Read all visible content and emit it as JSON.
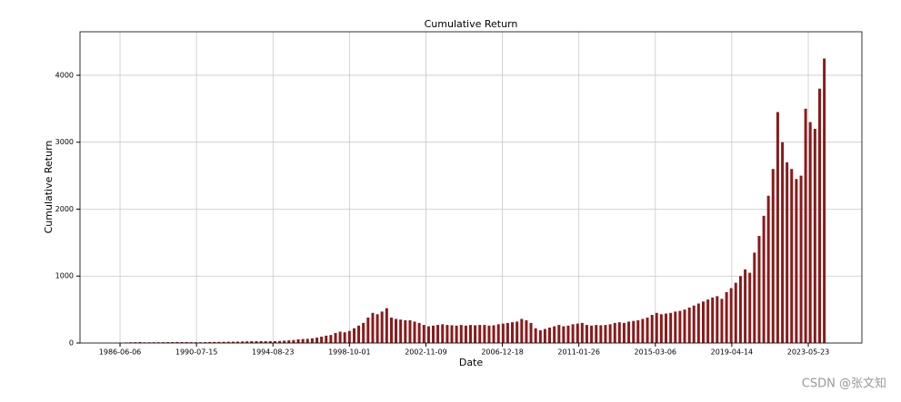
{
  "chart_data": {
    "type": "bar",
    "title": "Cumulative Return",
    "x_label": "Date",
    "y_label": "Cumulative Return",
    "watermark": "CSDN @张文知",
    "color": "#8b1a1a",
    "grid": true,
    "xlim": [
      "1984-04-12",
      "2026-04-09"
    ],
    "xticks": [
      "1986-06-06",
      "1990-07-15",
      "1994-08-23",
      "1998-10-01",
      "2002-11-09",
      "2006-12-18",
      "2011-01-26",
      "2015-03-06",
      "2019-04-14",
      "2023-05-23"
    ],
    "ylim": [
      0,
      4650
    ],
    "yticks": [
      0,
      1000,
      2000,
      3000,
      4000
    ],
    "x": [
      "1986-10-01",
      "1987-01-01",
      "1987-04-01",
      "1987-07-01",
      "1987-10-01",
      "1988-01-01",
      "1988-04-01",
      "1988-07-01",
      "1988-10-01",
      "1989-01-01",
      "1989-04-01",
      "1989-07-01",
      "1989-10-01",
      "1990-01-01",
      "1990-04-01",
      "1990-07-01",
      "1990-10-01",
      "1991-01-01",
      "1991-04-01",
      "1991-07-01",
      "1991-10-01",
      "1992-01-01",
      "1992-04-01",
      "1992-07-01",
      "1992-10-01",
      "1993-01-01",
      "1993-04-01",
      "1993-07-01",
      "1993-10-01",
      "1994-01-01",
      "1994-04-01",
      "1994-07-01",
      "1994-10-01",
      "1995-01-01",
      "1995-04-01",
      "1995-07-01",
      "1995-10-01",
      "1996-01-01",
      "1996-04-01",
      "1996-07-01",
      "1996-10-01",
      "1997-01-01",
      "1997-04-01",
      "1997-07-01",
      "1997-10-01",
      "1998-01-01",
      "1998-04-01",
      "1998-07-01",
      "1998-10-01",
      "1999-01-01",
      "1999-04-01",
      "1999-07-01",
      "1999-10-01",
      "2000-01-01",
      "2000-04-01",
      "2000-07-01",
      "2000-10-01",
      "2001-01-01",
      "2001-04-01",
      "2001-07-01",
      "2001-10-01",
      "2002-01-01",
      "2002-04-01",
      "2002-07-01",
      "2002-10-01",
      "2003-01-01",
      "2003-04-01",
      "2003-07-01",
      "2003-10-01",
      "2004-01-01",
      "2004-04-01",
      "2004-07-01",
      "2004-10-01",
      "2005-01-01",
      "2005-04-01",
      "2005-07-01",
      "2005-10-01",
      "2006-01-01",
      "2006-04-01",
      "2006-07-01",
      "2006-10-01",
      "2007-01-01",
      "2007-04-01",
      "2007-07-01",
      "2007-10-01",
      "2008-01-01",
      "2008-04-01",
      "2008-07-01",
      "2008-10-01",
      "2009-01-01",
      "2009-04-01",
      "2009-07-01",
      "2009-10-01",
      "2010-01-01",
      "2010-04-01",
      "2010-07-01",
      "2010-10-01",
      "2011-01-01",
      "2011-04-01",
      "2011-07-01",
      "2011-10-01",
      "2012-01-01",
      "2012-04-01",
      "2012-07-01",
      "2012-10-01",
      "2013-01-01",
      "2013-04-01",
      "2013-07-01",
      "2013-10-01",
      "2014-01-01",
      "2014-04-01",
      "2014-07-01",
      "2014-10-01",
      "2015-01-01",
      "2015-04-01",
      "2015-07-01",
      "2015-10-01",
      "2016-01-01",
      "2016-04-01",
      "2016-07-01",
      "2016-10-01",
      "2017-01-01",
      "2017-04-01",
      "2017-07-01",
      "2017-10-01",
      "2018-01-01",
      "2018-04-01",
      "2018-07-01",
      "2018-10-01",
      "2019-01-01",
      "2019-04-01",
      "2019-07-01",
      "2019-10-01",
      "2020-01-01",
      "2020-04-01",
      "2020-07-01",
      "2020-10-01",
      "2021-01-01",
      "2021-04-01",
      "2021-07-01",
      "2021-10-01",
      "2022-01-01",
      "2022-04-01",
      "2022-07-01",
      "2022-10-01",
      "2023-01-01",
      "2023-04-01",
      "2023-07-01",
      "2023-10-01",
      "2024-01-01",
      "2024-04-01"
    ],
    "values": [
      8,
      10,
      12,
      14,
      10,
      10,
      11,
      11,
      12,
      13,
      14,
      15,
      14,
      14,
      12,
      11,
      11,
      13,
      15,
      16,
      17,
      18,
      19,
      20,
      21,
      23,
      25,
      27,
      28,
      28,
      27,
      27,
      28,
      30,
      35,
      40,
      45,
      55,
      60,
      62,
      70,
      80,
      95,
      110,
      120,
      150,
      170,
      160,
      180,
      220,
      260,
      300,
      380,
      450,
      430,
      470,
      520,
      380,
      360,
      350,
      340,
      340,
      320,
      300,
      270,
      250,
      260,
      270,
      280,
      270,
      265,
      260,
      270,
      260,
      270,
      265,
      270,
      270,
      260,
      265,
      280,
      290,
      300,
      310,
      320,
      360,
      340,
      300,
      220,
      190,
      210,
      230,
      250,
      270,
      250,
      260,
      280,
      290,
      300,
      270,
      260,
      270,
      265,
      270,
      280,
      300,
      310,
      300,
      320,
      330,
      340,
      360,
      380,
      420,
      450,
      430,
      440,
      450,
      470,
      480,
      500,
      530,
      560,
      590,
      620,
      650,
      680,
      700,
      660,
      760,
      820,
      900,
      1000,
      1100,
      1050,
      1350,
      1600,
      1900,
      2200,
      2600,
      3450,
      3000,
      2700,
      2600,
      2450,
      2500,
      3500,
      3300,
      3200,
      3800,
      4250
    ]
  }
}
